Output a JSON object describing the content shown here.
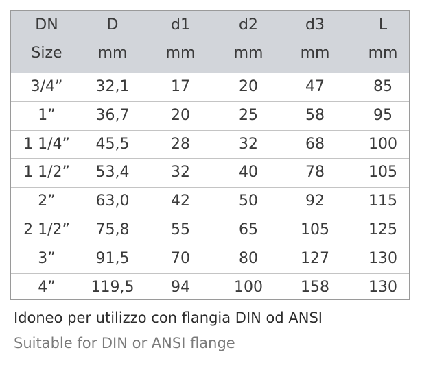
{
  "table": {
    "header": [
      [
        "DN",
        "Size"
      ],
      [
        "D",
        "mm"
      ],
      [
        "d1",
        "mm"
      ],
      [
        "d2",
        "mm"
      ],
      [
        "d3",
        "mm"
      ],
      [
        "L",
        "mm"
      ]
    ],
    "rows": [
      [
        "3/4”",
        "32,1",
        "17",
        "20",
        "47",
        "85"
      ],
      [
        "1”",
        "36,7",
        "20",
        "25",
        "58",
        "95"
      ],
      [
        "1 1/4”",
        "45,5",
        "28",
        "32",
        "68",
        "100"
      ],
      [
        "1 1/2”",
        "53,4",
        "32",
        "40",
        "78",
        "105"
      ],
      [
        "2”",
        "63,0",
        "42",
        "50",
        "92",
        "115"
      ],
      [
        "2 1/2”",
        "75,8",
        "55",
        "65",
        "105",
        "125"
      ],
      [
        "3”",
        "91,5",
        "70",
        "80",
        "127",
        "130"
      ],
      [
        "4”",
        "119,5",
        "94",
        "100",
        "158",
        "130"
      ]
    ]
  },
  "footer": {
    "italian": "Idoneo per utilizzo con flangia DIN od ANSI",
    "english": "Suitable for DIN or ANSI flange"
  }
}
